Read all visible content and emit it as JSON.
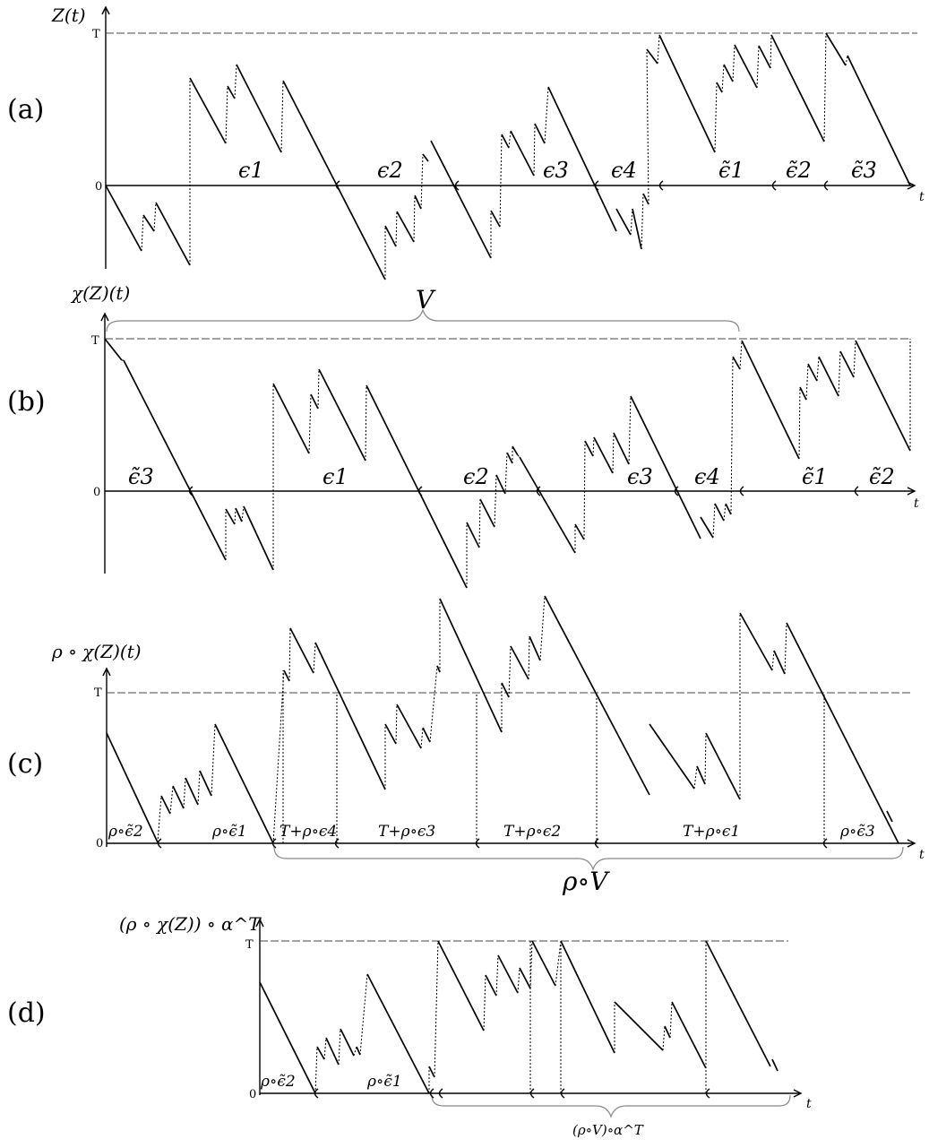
{
  "panels": {
    "a": {
      "label": "(a)",
      "ylabel": "Z(t)",
      "ytick_T": "T",
      "ytick_0": "0",
      "xlabel": "t",
      "segments": [
        "ϵ1",
        "ϵ2",
        "ϵ3",
        "ϵ4",
        "ϵ̃1",
        "ϵ̃2",
        "ϵ̃3"
      ]
    },
    "b": {
      "label": "(b)",
      "ylabel": "χ(Z)(t)",
      "ytick_T": "T",
      "ytick_0": "0",
      "xlabel": "t",
      "brace": "V",
      "segments": [
        "ϵ̃3",
        "ϵ1",
        "ϵ2",
        "ϵ3",
        "ϵ4",
        "ϵ̃1",
        "ϵ̃2"
      ]
    },
    "c": {
      "label": "(c)",
      "ylabel": "ρ ∘ χ(Z)(t)",
      "ytick_T": "T",
      "ytick_0": "0",
      "xlabel": "t",
      "brace": "ρ∘V",
      "segments": [
        "ρ∘ϵ̃2",
        "ρ∘ϵ̃1",
        "T+ρ∘ϵ4",
        "T+ρ∘ϵ3",
        "T+ρ∘ϵ2",
        "T+ρ∘ϵ1",
        "ρ∘ϵ̃3"
      ]
    },
    "d": {
      "label": "(d)",
      "ylabel": "(ρ ∘ χ(Z)) ∘ α^T",
      "ytick_T": "T",
      "ytick_0": "0",
      "xlabel": "t",
      "brace": "(ρ∘V)∘α^T",
      "segments": [
        "ρ∘ϵ̃2",
        "ρ∘ϵ̃1"
      ]
    }
  }
}
